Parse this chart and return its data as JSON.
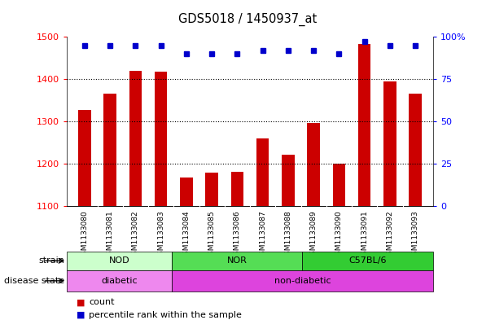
{
  "title": "GDS5018 / 1450937_at",
  "samples": [
    "GSM1133080",
    "GSM1133081",
    "GSM1133082",
    "GSM1133083",
    "GSM1133084",
    "GSM1133085",
    "GSM1133086",
    "GSM1133087",
    "GSM1133088",
    "GSM1133089",
    "GSM1133090",
    "GSM1133091",
    "GSM1133092",
    "GSM1133093"
  ],
  "counts": [
    1328,
    1365,
    1420,
    1418,
    1168,
    1180,
    1182,
    1260,
    1222,
    1296,
    1200,
    1483,
    1395,
    1365
  ],
  "percentiles": [
    95,
    95,
    95,
    95,
    90,
    90,
    90,
    92,
    92,
    92,
    90,
    97,
    95,
    95
  ],
  "ylim_left": [
    1100,
    1500
  ],
  "ylim_right": [
    0,
    100
  ],
  "yticks_left": [
    1100,
    1200,
    1300,
    1400,
    1500
  ],
  "yticks_right": [
    0,
    25,
    50,
    75,
    100
  ],
  "ytick_labels_right": [
    "0",
    "25",
    "50",
    "75",
    "100%"
  ],
  "bar_color": "#cc0000",
  "dot_color": "#0000cc",
  "strain_groups": [
    {
      "label": "NOD",
      "start": 0,
      "end": 3,
      "color": "#ccffcc"
    },
    {
      "label": "NOR",
      "start": 4,
      "end": 8,
      "color": "#55dd55"
    },
    {
      "label": "C57BL/6",
      "start": 9,
      "end": 13,
      "color": "#33cc33"
    }
  ],
  "disease_groups": [
    {
      "label": "diabetic",
      "start": 0,
      "end": 3,
      "color": "#ee88ee"
    },
    {
      "label": "non-diabetic",
      "start": 4,
      "end": 13,
      "color": "#dd44dd"
    }
  ],
  "strain_row_label": "strain",
  "disease_row_label": "disease state",
  "legend_count_color": "#cc0000",
  "legend_pct_color": "#0000cc",
  "legend_count_label": "count",
  "legend_pct_label": "percentile rank within the sample",
  "bg_color": "#ffffff",
  "tick_area_color": "#cccccc",
  "gridline_ticks": [
    1200,
    1300,
    1400
  ]
}
